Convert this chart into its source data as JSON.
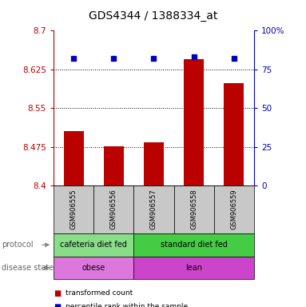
{
  "title": "GDS4344 / 1388334_at",
  "samples": [
    "GSM906555",
    "GSM906556",
    "GSM906557",
    "GSM906558",
    "GSM906559"
  ],
  "transformed_counts": [
    8.505,
    8.476,
    8.484,
    8.645,
    8.598
  ],
  "percentile_ranks": [
    82,
    82,
    82,
    83,
    82
  ],
  "ylim_left": [
    8.4,
    8.7
  ],
  "ylim_right": [
    0,
    100
  ],
  "yticks_left": [
    8.4,
    8.475,
    8.55,
    8.625,
    8.7
  ],
  "ytick_labels_left": [
    "8.4",
    "8.475",
    "8.55",
    "8.625",
    "8.7"
  ],
  "yticks_right": [
    0,
    25,
    50,
    75,
    100
  ],
  "ytick_labels_right": [
    "0",
    "25",
    "50",
    "75",
    "100%"
  ],
  "bar_color": "#bb0000",
  "dot_color": "#0000bb",
  "bar_width": 0.5,
  "n_cafeteria": 2,
  "n_standard": 3,
  "protocol_color_cafeteria": "#88dd88",
  "protocol_color_standard": "#44cc44",
  "disease_color_obese": "#dd77dd",
  "disease_color_lean": "#cc44cc",
  "protocol_row_label": "protocol",
  "disease_row_label": "disease state",
  "legend_red_label": "transformed count",
  "legend_blue_label": "percentile rank within the sample",
  "grid_dotted_values": [
    8.475,
    8.55,
    8.625
  ],
  "title_fontsize": 10,
  "tick_fontsize": 7.5,
  "label_fontsize": 7,
  "annotation_fontsize": 7
}
